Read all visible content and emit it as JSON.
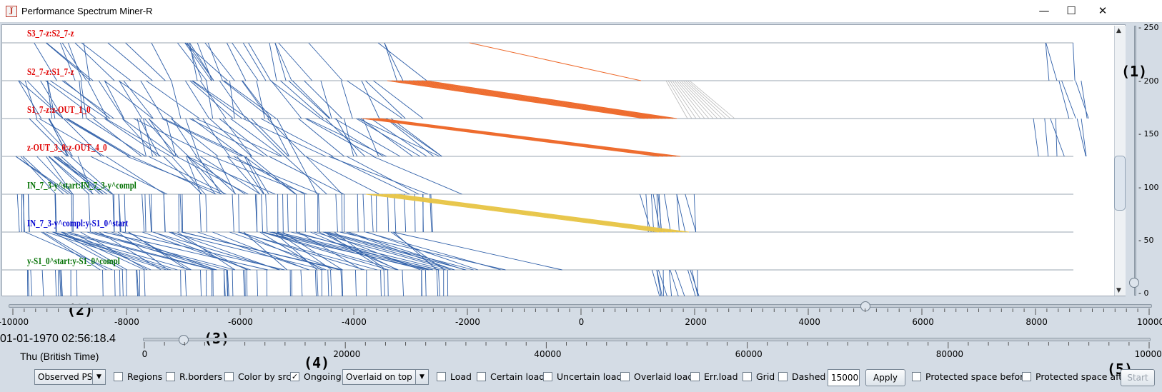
{
  "window": {
    "title": "Performance Spectrum Miner-R",
    "icon_glyph": "J",
    "minimize_glyph": "—",
    "maximize_glyph": "☐",
    "close_glyph": "✕"
  },
  "segments": [
    {
      "label": "S3_7-z:S2_7-z",
      "color": "#e00000"
    },
    {
      "label": "S2_7-z:S1_7-z",
      "color": "#e00000"
    },
    {
      "label": "S1_7-z:z-OUT_1_0",
      "color": "#e00000"
    },
    {
      "label": "z-OUT_3_0:z-OUT_4_0",
      "color": "#e00000"
    },
    {
      "label": "IN_7_3-y^start:IN_7_3-y^compl",
      "color": "#007000"
    },
    {
      "label": "IN_7_3-y^compl:y-S1_0^start",
      "color": "#0000d0"
    },
    {
      "label": "y-S1_0^start:y-S1_0^compl",
      "color": "#007000"
    }
  ],
  "colors": {
    "line_blue": "#2f5fa8",
    "line_orange": "#ee6b2d",
    "line_yellow": "#e8c64a",
    "line_gray": "#b8b8b8"
  },
  "right_axis": {
    "ticks": [
      "250",
      "200",
      "150",
      "100",
      "50",
      "0"
    ]
  },
  "annotations": [
    "(1)",
    "(2)",
    "(3)",
    "(4)",
    "(5)"
  ],
  "time_axis": {
    "ticks": [
      "-10000",
      "-8000",
      "-6000",
      "-4000",
      "-2000",
      "0",
      "2000",
      "4000",
      "6000",
      "8000",
      "10000"
    ],
    "slider_value_fraction": 0.75
  },
  "position_axis": {
    "ticks": [
      "0",
      "20000",
      "40000",
      "60000",
      "80000",
      "100000"
    ],
    "slider_value_fraction": 0.02
  },
  "datetime": "01-01-1970 02:56:18.4",
  "weekday": "Thu (British Time)",
  "controls": {
    "mode_select": "Observed PS",
    "regions": "Regions",
    "r_borders": "R.borders",
    "color_by_src": "Color by src",
    "ongoing": "Ongoing",
    "ongoing_checked": true,
    "overlay_select": "Overlaid on top",
    "load": "Load",
    "certain_load": "Certain load",
    "uncertain_load": "Uncertain load",
    "overlaid_load": "Overlaid load",
    "err_load": "Err.load",
    "grid": "Grid",
    "dashed": "Dashed",
    "max_value": "15000",
    "apply": "Apply",
    "protected_before": "Protected space before",
    "protected_after": "Protected space after",
    "start": "Start"
  }
}
